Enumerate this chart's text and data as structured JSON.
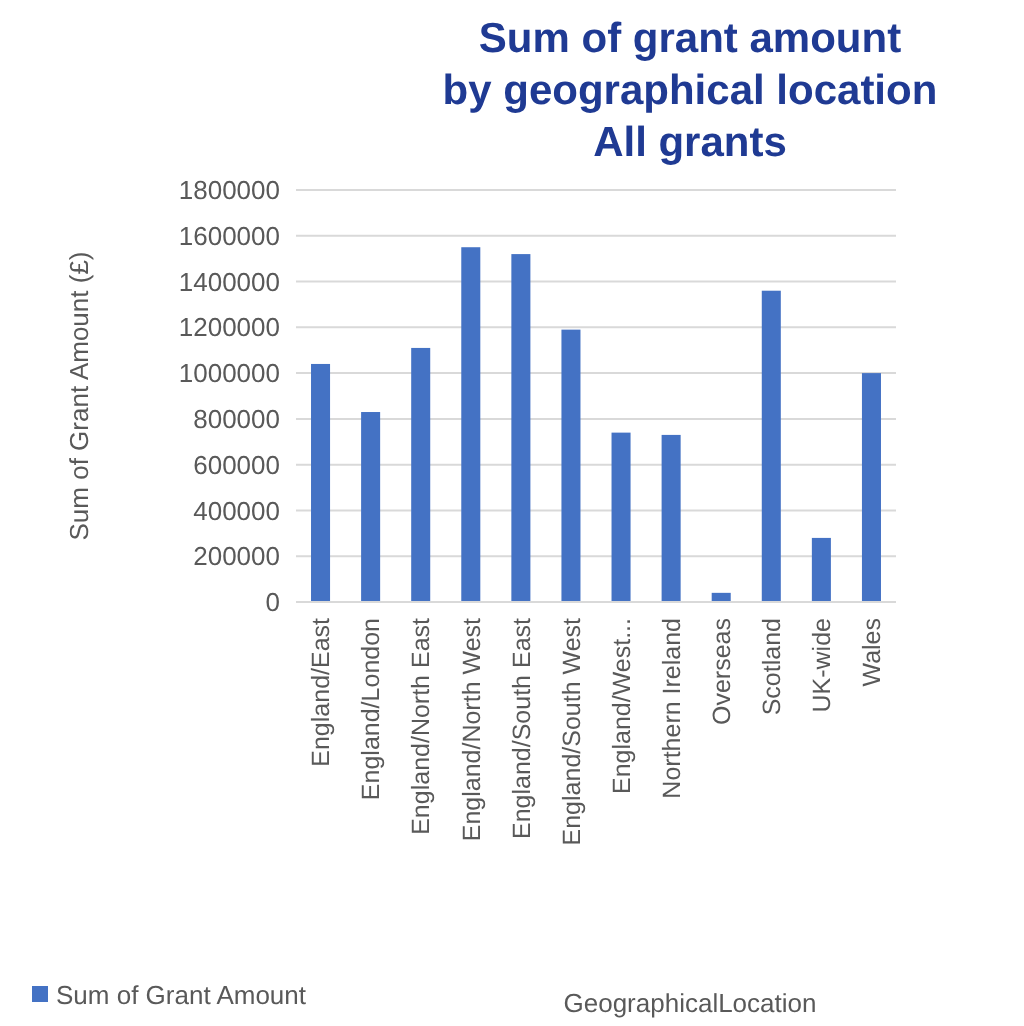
{
  "chart_data": {
    "type": "bar",
    "title": "Sum of grant amount\nby geographical location\nAll grants",
    "annotations": [
      "GeographicalLocation"
    ],
    "ylabel": "Sum of Grant Amount (£)",
    "categories": [
      "England/East",
      "England/London",
      "England/North East",
      "England/North West",
      "England/South East",
      "England/South West",
      "England/West...",
      "Northern Ireland",
      "Overseas",
      "Scotland",
      "UK-wide",
      "Wales"
    ],
    "series": [
      {
        "name": "Sum of Grant Amount",
        "color": "#4472c4",
        "values": [
          1040000,
          830000,
          1110000,
          1550000,
          1520000,
          1190000,
          740000,
          730000,
          40000,
          1360000,
          280000,
          1000000
        ]
      }
    ],
    "ylim": [
      0,
      1800000
    ],
    "yticks": [
      0,
      200000,
      400000,
      600000,
      800000,
      1000000,
      1200000,
      1400000,
      1600000,
      1800000
    ],
    "grid": "y",
    "legend": "bottom left"
  }
}
